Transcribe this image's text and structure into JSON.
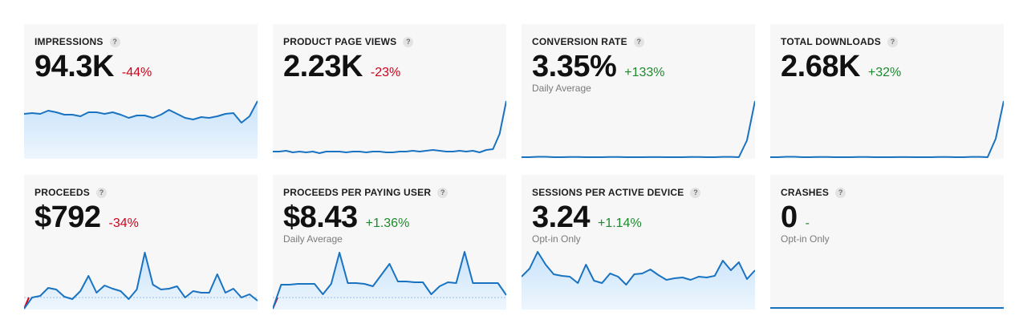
{
  "colors": {
    "line": "#1a73c0",
    "fill_top": "#c8e3fb",
    "fill_bottom": "#eef6fd",
    "negative": "#d0021b",
    "positive": "#1e8a2e",
    "baseline_dash": "#9cc3e6"
  },
  "cards": [
    {
      "title": "IMPRESSIONS",
      "help": "?",
      "value": "94.3K",
      "change": "-44%",
      "trend": "negative",
      "subtitle": "",
      "chart_style": "area",
      "series": [
        55,
        56,
        55,
        59,
        57,
        54,
        54,
        52,
        57,
        57,
        55,
        57,
        54,
        50,
        53,
        53,
        50,
        54,
        60,
        55,
        50,
        48,
        51,
        50,
        52,
        55,
        56,
        44,
        52,
        71
      ]
    },
    {
      "title": "PRODUCT PAGE VIEWS",
      "help": "?",
      "value": "2.23K",
      "change": "-23%",
      "trend": "negative",
      "subtitle": "",
      "chart_style": "line",
      "series": [
        8,
        8,
        9,
        7,
        8,
        7,
        8,
        6,
        8,
        8,
        8,
        7,
        8,
        8,
        7,
        8,
        8,
        7,
        7,
        8,
        8,
        9,
        8,
        9,
        10,
        9,
        8,
        8,
        9,
        8,
        9,
        7,
        10,
        11,
        30,
        71
      ]
    },
    {
      "title": "CONVERSION RATE",
      "help": "?",
      "value": "3.35%",
      "change": "+133%",
      "trend": "positive",
      "subtitle": "Daily Average",
      "chart_style": "line",
      "series": [
        1,
        1,
        1.5,
        1.5,
        1,
        1,
        1.3,
        1.3,
        1,
        1,
        1,
        1.2,
        1.2,
        1,
        1,
        1,
        1.1,
        1.1,
        1,
        1,
        1,
        1.2,
        1.2,
        1,
        1,
        1.4,
        1.4,
        1,
        22,
        71
      ]
    },
    {
      "title": "TOTAL DOWNLOADS",
      "help": "?",
      "value": "2.68K",
      "change": "+32%",
      "trend": "positive",
      "subtitle": "",
      "chart_style": "line",
      "series": [
        1,
        1,
        1.5,
        1.5,
        1,
        1,
        1.3,
        1.3,
        1,
        1,
        1,
        1.2,
        1.2,
        1,
        1,
        1,
        1.1,
        1.1,
        1,
        1,
        1,
        1.2,
        1.2,
        1,
        1,
        1.4,
        1.4,
        1,
        24,
        71
      ]
    },
    {
      "title": "PROCEEDS",
      "help": "?",
      "value": "$792",
      "change": "-34%",
      "trend": "negative",
      "subtitle": "",
      "chart_style": "area-baseline",
      "series": [
        0,
        14,
        16,
        26,
        24,
        15,
        12,
        22,
        41,
        20,
        29,
        25,
        22,
        12,
        24,
        70,
        30,
        24,
        25,
        28,
        14,
        22,
        20,
        20,
        43,
        20,
        25,
        14,
        18,
        10
      ]
    },
    {
      "title": "PROCEEDS PER PAYING USER",
      "help": "?",
      "value": "$8.43",
      "change": "+1.36%",
      "trend": "positive",
      "subtitle": "Daily Average",
      "chart_style": "area-baseline",
      "series": [
        0,
        30,
        30,
        31,
        31,
        31,
        18,
        31,
        70,
        32,
        32,
        31,
        28,
        42,
        56,
        34,
        34,
        33,
        33,
        18,
        28,
        33,
        32,
        71,
        32,
        32,
        32,
        32,
        17
      ]
    },
    {
      "title": "SESSIONS PER ACTIVE DEVICE",
      "help": "?",
      "value": "3.24",
      "change": "+1.14%",
      "trend": "positive",
      "subtitle": "Opt-in Only",
      "chart_style": "area",
      "series": [
        40,
        50,
        71,
        55,
        43,
        41,
        40,
        32,
        55,
        35,
        32,
        44,
        40,
        30,
        43,
        44,
        49,
        42,
        36,
        38,
        39,
        36,
        40,
        39,
        41,
        60,
        48,
        58,
        37,
        48
      ]
    },
    {
      "title": "CRASHES",
      "help": "?",
      "value": "0",
      "change": "-",
      "trend": "positive",
      "subtitle": "Opt-in Only",
      "chart_style": "flat",
      "series": [
        0,
        0,
        0,
        0,
        0,
        0,
        0,
        0,
        0,
        0,
        0,
        0,
        0,
        0,
        0,
        0,
        0,
        0,
        0,
        0,
        0,
        0,
        0,
        0,
        0,
        0,
        0,
        0,
        0,
        0
      ]
    }
  ]
}
